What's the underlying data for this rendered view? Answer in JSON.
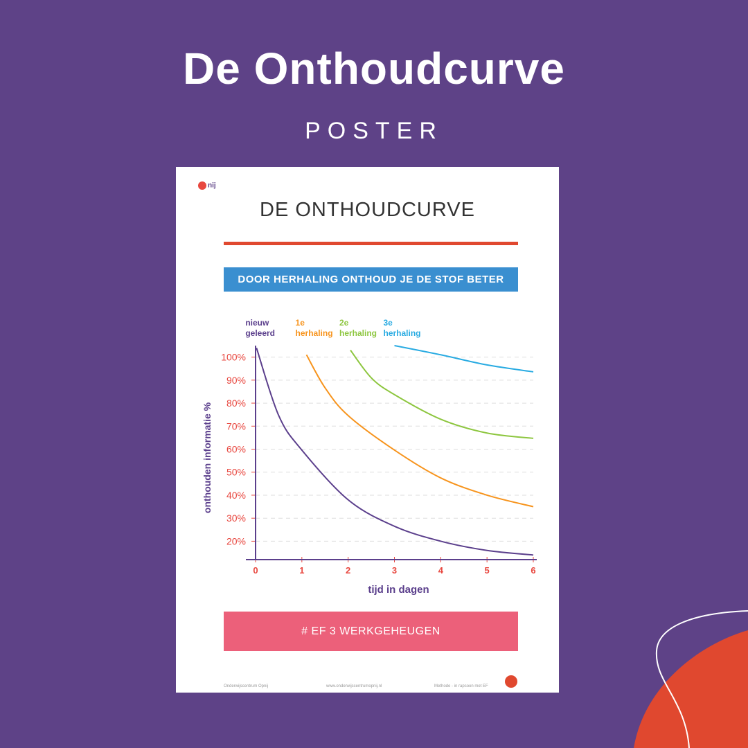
{
  "header": {
    "title": "De Onthoudcurve",
    "subtitle": "POSTER"
  },
  "poster": {
    "logo": "nij",
    "title": "DE ONTHOUDCURVE",
    "banner": "DOOR HERHALING ONTHOUD JE DE STOF BETER",
    "tag": "# EF 3 WERKGEHEUGEN",
    "footer": [
      "Onderwijscentrum Opnij",
      "www.onderwijscentrumopnij.nl",
      "Methode - in rapsoon met EF"
    ]
  },
  "chart_data": {
    "type": "line",
    "xlabel": "tijd in dagen",
    "ylabel": "onthouden informatie %",
    "xlim": [
      0,
      6
    ],
    "xticks": [
      0,
      1,
      2,
      3,
      4,
      5,
      6
    ],
    "ylim": [
      12,
      105
    ],
    "yticks": [
      {
        "value": 20,
        "label": "20%"
      },
      {
        "value": 30,
        "label": "30%"
      },
      {
        "value": 40,
        "label": "40%"
      },
      {
        "value": 50,
        "label": "50%"
      },
      {
        "value": 60,
        "label": "60%"
      },
      {
        "value": 70,
        "label": "70%"
      },
      {
        "value": 80,
        "label": "80%"
      },
      {
        "value": 90,
        "label": "90%"
      },
      {
        "value": 100,
        "label": "100%"
      }
    ],
    "grid": true,
    "series": [
      {
        "name": "nieuw geleerd",
        "color": "#5b3f8c",
        "x": [
          0.02,
          0.5,
          1,
          2,
          3,
          4,
          5,
          6
        ],
        "values": [
          104,
          74.6,
          59.6,
          38,
          26.5,
          20,
          16,
          14
        ]
      },
      {
        "name": "1e herhaling",
        "color": "#f7941d",
        "x": [
          1.1,
          1.5,
          2,
          3,
          4,
          5,
          6
        ],
        "values": [
          101,
          86.7,
          74.6,
          59.6,
          47.5,
          40,
          35
        ]
      },
      {
        "name": "2e herhaling",
        "color": "#8dc63f",
        "x": [
          2.05,
          2.5,
          3,
          4,
          5,
          6
        ],
        "values": [
          103,
          91,
          83.7,
          73,
          67,
          64.7
        ]
      },
      {
        "name": "3e herhaling",
        "color": "#29abe2",
        "x": [
          3,
          4,
          5,
          6
        ],
        "values": [
          105,
          101,
          96.6,
          93.6
        ]
      }
    ]
  }
}
